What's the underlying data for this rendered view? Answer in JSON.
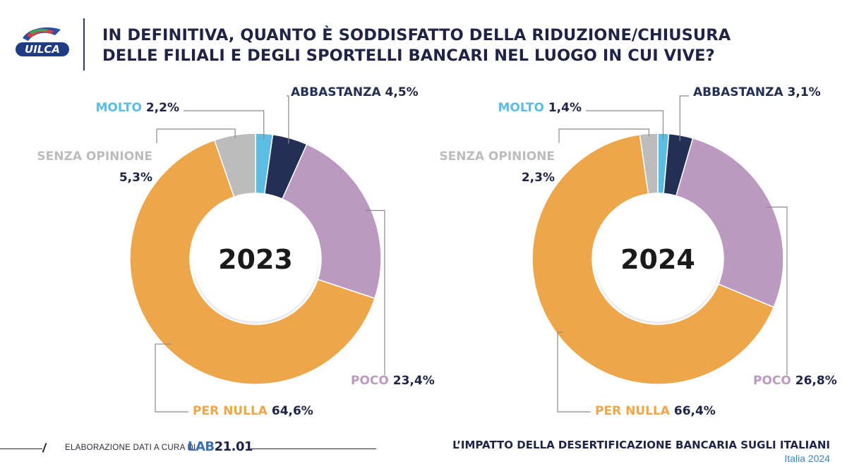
{
  "logo": {
    "text": "UILCA"
  },
  "title": {
    "line1": "IN DEFINITIVA, QUANTO È SODDISFATTO DELLA RIDUZIONE/CHIUSURA",
    "line2": "DELLE FILIALI E DEGLI SPORTELLI BANCARI NEL LUOGO IN CUI VIVE?"
  },
  "colors": {
    "molto": "#5bbde3",
    "abbastanza": "#232f55",
    "poco": "#bb99c0",
    "per_nulla": "#eea64b",
    "senza_opinione": "#bcbcbc",
    "title": "#1f2345",
    "accent_blue": "#3a86c5"
  },
  "chart_data": [
    {
      "type": "pie",
      "title": "2023",
      "categories": [
        "MOLTO",
        "ABBASTANZA",
        "POCO",
        "PER NULLA",
        "SENZA OPINIONE"
      ],
      "values": [
        2.2,
        4.5,
        23.4,
        64.6,
        5.3
      ],
      "value_labels": [
        "2,2%",
        "4,5%",
        "23,4%",
        "64,6%",
        "5,3%"
      ]
    },
    {
      "type": "pie",
      "title": "2024",
      "categories": [
        "MOLTO",
        "ABBASTANZA",
        "POCO",
        "PER NULLA",
        "SENZA OPINIONE"
      ],
      "values": [
        1.4,
        3.1,
        26.8,
        66.4,
        2.3
      ],
      "value_labels": [
        "1,4%",
        "3,1%",
        "26,8%",
        "66,4%",
        "2,3%"
      ]
    }
  ],
  "footer": {
    "credit": "ELABORAZIONE DATI A CURA DI",
    "lab_prefix": "LAB",
    "lab_suffix": "21.01",
    "report_title": "L’IMPATTO DELLA DESERTIFICAZIONE BANCARIA SUGLI ITALIANI",
    "report_subtitle": "Italia 2024"
  }
}
